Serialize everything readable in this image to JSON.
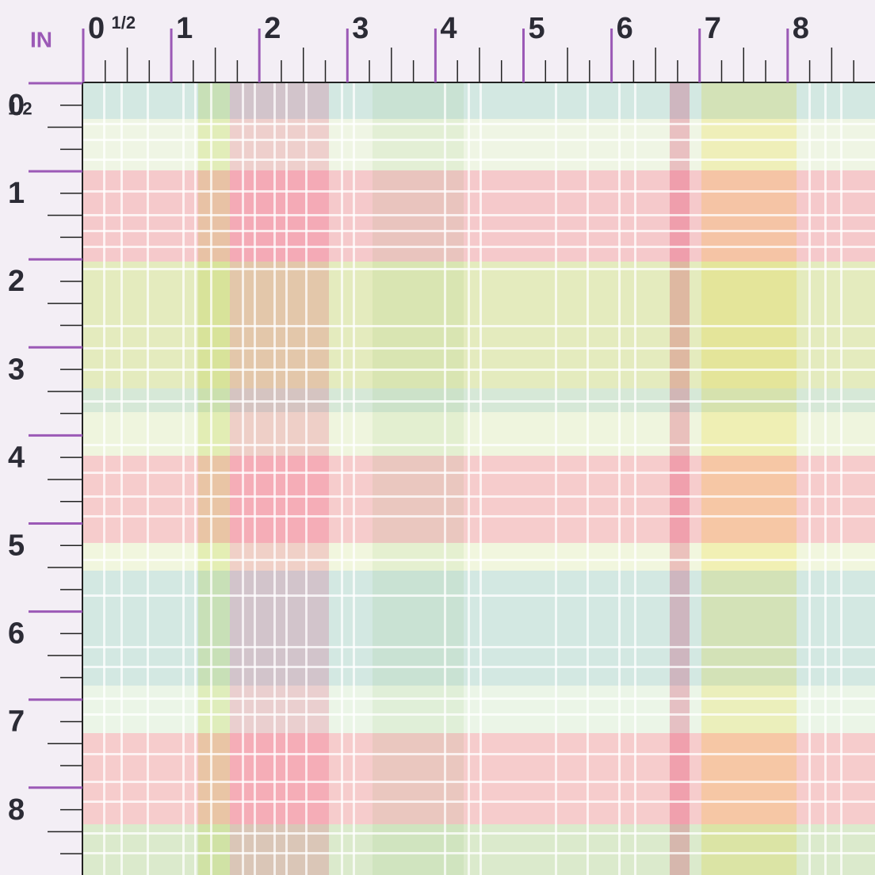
{
  "unit_label": "IN",
  "top_ruler": [
    "0",
    "1/2",
    "1",
    "2",
    "3",
    "4",
    "5",
    "6",
    "7",
    "8"
  ],
  "left_ruler": [
    "0",
    "1/2",
    "1",
    "2",
    "3",
    "4",
    "5",
    "6",
    "7",
    "8"
  ]
}
